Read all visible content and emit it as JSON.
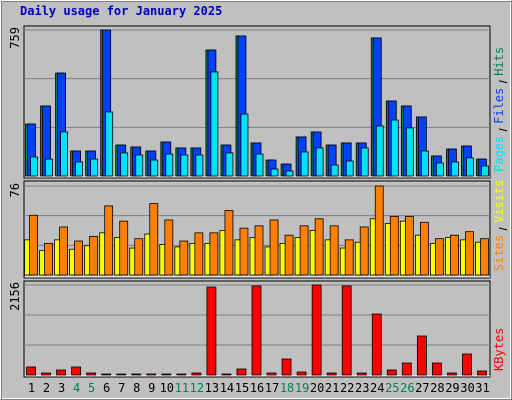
{
  "chart_data": [
    {
      "type": "bar",
      "title": "Daily usage for January 2025",
      "categories": [
        "1",
        "2",
        "3",
        "4",
        "5",
        "6",
        "7",
        "8",
        "9",
        "10",
        "11",
        "12",
        "13",
        "14",
        "15",
        "16",
        "17",
        "18",
        "19",
        "20",
        "21",
        "22",
        "23",
        "24",
        "25",
        "26",
        "27",
        "28",
        "29",
        "30",
        "31"
      ],
      "series": [
        {
          "name": "Hits",
          "color": "#00805c",
          "values": [
            270,
            364,
            535,
            130,
            130,
            759,
            161,
            151,
            130,
            177,
            146,
            146,
            655,
            161,
            728,
            172,
            83,
            62,
            203,
            229,
            161,
            172,
            172,
            718,
            390,
            364,
            307,
            104,
            140,
            156,
            88
          ]
        },
        {
          "name": "Files",
          "color": "#0040ff",
          "values": [
            270,
            364,
            535,
            130,
            130,
            759,
            161,
            151,
            130,
            177,
            146,
            146,
            655,
            161,
            728,
            172,
            83,
            62,
            203,
            229,
            161,
            172,
            172,
            718,
            390,
            364,
            307,
            104,
            140,
            156,
            88
          ]
        },
        {
          "name": "Pages",
          "color": "#00e0ff",
          "values": [
            99,
            88,
            229,
            73,
            88,
            333,
            120,
            109,
            83,
            114,
            109,
            109,
            541,
            120,
            322,
            114,
            36,
            26,
            125,
            146,
            57,
            78,
            146,
            260,
            291,
            250,
            130,
            68,
            73,
            94,
            52
          ]
        }
      ],
      "ylim": [
        0,
        759
      ],
      "yticks": [
        759
      ]
    },
    {
      "type": "bar",
      "categories": [
        "1",
        "2",
        "3",
        "4",
        "5",
        "6",
        "7",
        "8",
        "9",
        "10",
        "11",
        "12",
        "13",
        "14",
        "15",
        "16",
        "17",
        "18",
        "19",
        "20",
        "21",
        "22",
        "23",
        "24",
        "25",
        "26",
        "27",
        "28",
        "29",
        "30",
        "31"
      ],
      "series": [
        {
          "name": "Visits",
          "color": "#ffff00",
          "values": [
            30,
            21,
            30,
            22,
            25,
            36,
            32,
            23,
            35,
            26,
            24,
            27,
            27,
            38,
            30,
            32,
            24,
            27,
            32,
            38,
            30,
            23,
            28,
            48,
            44,
            46,
            34,
            27,
            32,
            30,
            28
          ]
        },
        {
          "name": "Sites",
          "color": "#ff8000",
          "values": [
            51,
            27,
            41,
            29,
            33,
            59,
            46,
            31,
            61,
            47,
            29,
            36,
            36,
            55,
            40,
            42,
            47,
            34,
            42,
            48,
            42,
            30,
            41,
            76,
            50,
            50,
            45,
            31,
            34,
            37,
            31
          ]
        }
      ],
      "ylim": [
        0,
        76
      ],
      "yticks": [
        76
      ]
    },
    {
      "type": "bar",
      "categories": [
        "1",
        "2",
        "3",
        "4",
        "5",
        "6",
        "7",
        "8",
        "9",
        "10",
        "11",
        "12",
        "13",
        "14",
        "15",
        "16",
        "17",
        "18",
        "19",
        "20",
        "21",
        "22",
        "23",
        "24",
        "25",
        "26",
        "27",
        "28",
        "29",
        "30",
        "31"
      ],
      "series": [
        {
          "name": "KBytes",
          "color": "#ff0000",
          "values": [
            192,
            48,
            120,
            192,
            48,
            24,
            24,
            24,
            24,
            24,
            24,
            48,
            2108,
            24,
            144,
            2132,
            48,
            383,
            72,
            2156,
            48,
            2132,
            48,
            1461,
            120,
            287,
            934,
            287,
            48,
            503,
            96
          ]
        }
      ],
      "ylim": [
        0,
        2156
      ],
      "yticks": [
        2156
      ],
      "weekend_indices": [
        3,
        4,
        10,
        11,
        17,
        18,
        24,
        25
      ],
      "weekend_color": "#00805c",
      "weekday_color": "#000000"
    }
  ]
}
